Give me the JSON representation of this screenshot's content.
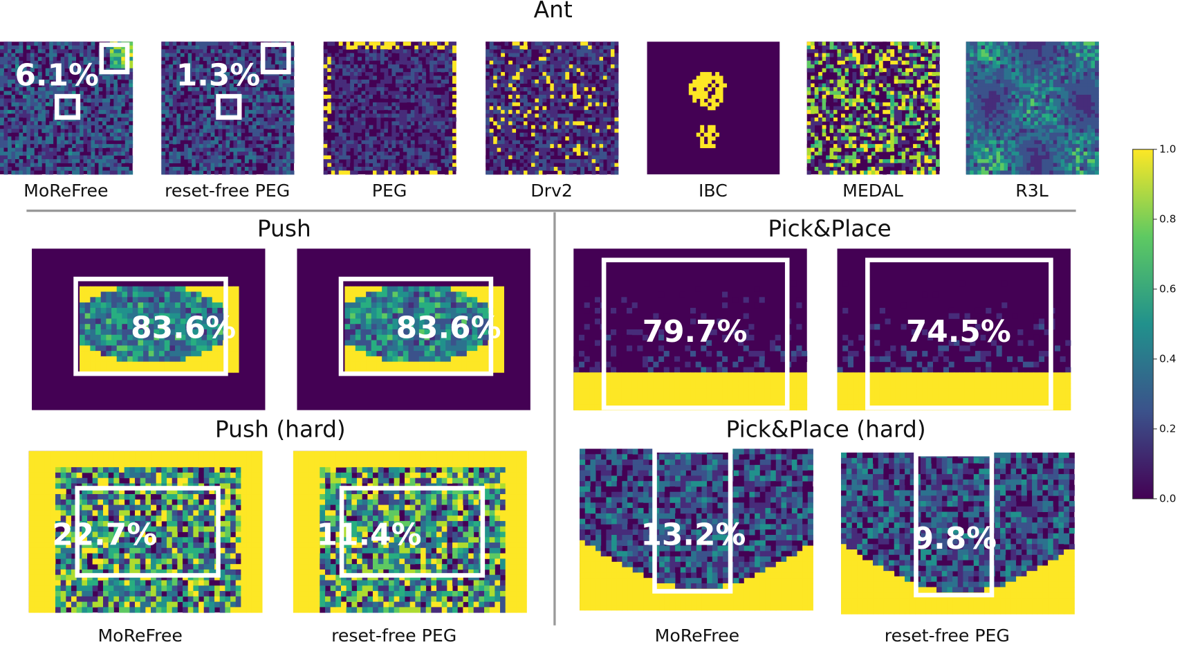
{
  "ant": {
    "title": "Ant",
    "panels": [
      {
        "label": "MoReFree",
        "annotation": "6.1%"
      },
      {
        "label": "reset-free PEG",
        "annotation": "1.3%"
      },
      {
        "label": "PEG"
      },
      {
        "label": "Drv2"
      },
      {
        "label": "IBC"
      },
      {
        "label": "MEDAL"
      },
      {
        "label": "R3L"
      }
    ]
  },
  "push": {
    "title": "Push",
    "panels": [
      {
        "annotation": "83.6%"
      },
      {
        "annotation": "83.6%"
      }
    ]
  },
  "pick_place": {
    "title": "Pick&Place",
    "panels": [
      {
        "annotation": "79.7%"
      },
      {
        "annotation": "74.5%"
      }
    ]
  },
  "push_hard": {
    "title": "Push (hard)",
    "panels": [
      {
        "annotation": "22.7%"
      },
      {
        "annotation": "11.4%"
      }
    ]
  },
  "pick_place_hard": {
    "title": "Pick&Place (hard)",
    "panels": [
      {
        "annotation": "13.2%"
      },
      {
        "annotation": "9.8%"
      }
    ]
  },
  "bottom_labels": [
    "MoReFree",
    "reset-free PEG",
    "MoReFree",
    "reset-free PEG"
  ],
  "colorbar": {
    "range": [
      0,
      1
    ],
    "ticks": [
      {
        "value": 0,
        "label": "0.0"
      },
      {
        "value": 0.2,
        "label": "0.2"
      },
      {
        "value": 0.4,
        "label": "0.4"
      },
      {
        "value": 0.6,
        "label": "0.6"
      },
      {
        "value": 0.8,
        "label": "0.8"
      },
      {
        "value": 1,
        "label": "1.0"
      }
    ]
  }
}
